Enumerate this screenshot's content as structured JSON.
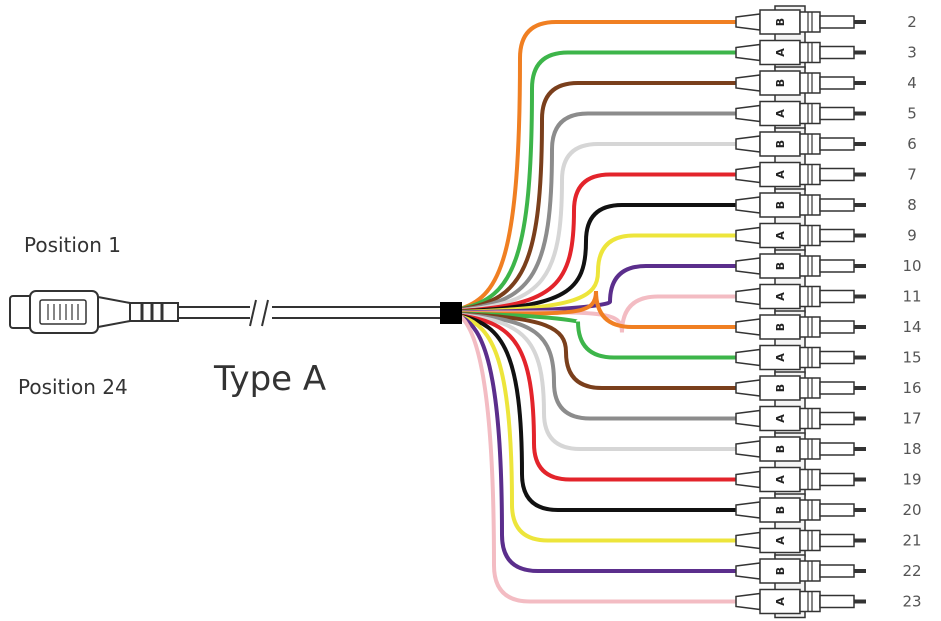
{
  "labels": {
    "position_top": "Position 1",
    "position_bottom": "Position 24",
    "type": "Type A"
  },
  "connector_letters": {
    "upper": "B",
    "lower": "A"
  },
  "fibers": [
    {
      "num": "2",
      "color": "#F07F22"
    },
    {
      "num": "3",
      "color": "#3DB54A"
    },
    {
      "num": "4",
      "color": "#7A3F1C"
    },
    {
      "num": "5",
      "color": "#8C8C8C"
    },
    {
      "num": "6",
      "color": "#D6D6D6"
    },
    {
      "num": "7",
      "color": "#E3242B"
    },
    {
      "num": "8",
      "color": "#111111"
    },
    {
      "num": "9",
      "color": "#EDE53B"
    },
    {
      "num": "10",
      "color": "#5B2E8C"
    },
    {
      "num": "11",
      "color": "#F3BCC3"
    },
    {
      "num": "14",
      "color": "#F07F22"
    },
    {
      "num": "15",
      "color": "#3DB54A"
    },
    {
      "num": "16",
      "color": "#7A3F1C"
    },
    {
      "num": "17",
      "color": "#8C8C8C"
    },
    {
      "num": "18",
      "color": "#D6D6D6"
    },
    {
      "num": "19",
      "color": "#E3242B"
    },
    {
      "num": "20",
      "color": "#111111"
    },
    {
      "num": "21",
      "color": "#EDE53B"
    },
    {
      "num": "22",
      "color": "#5B2E8C"
    },
    {
      "num": "23",
      "color": "#F3BCC3"
    }
  ]
}
